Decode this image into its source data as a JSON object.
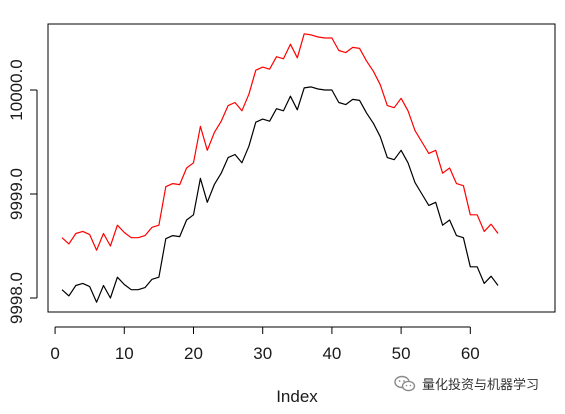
{
  "chart_data": {
    "type": "line",
    "title": "",
    "xlabel": "Index",
    "ylabel": "",
    "xlim": [
      1,
      64
    ],
    "ylim": [
      9997.85,
      10000.55
    ],
    "x_ticks": [
      0,
      10,
      20,
      30,
      40,
      50,
      60
    ],
    "y_ticks": [
      9998.0,
      9999.0,
      10000.0
    ],
    "y_tick_labels": [
      "9998.0",
      "9999.0",
      "10000.0"
    ],
    "grid": false,
    "legend": "none",
    "series": [
      {
        "color": "#ff0000",
        "values": [
          9998.58,
          9998.52,
          9998.62,
          9998.64,
          9998.61,
          9998.46,
          9998.62,
          9998.5,
          9998.7,
          9998.63,
          9998.58,
          9998.58,
          9998.6,
          9998.68,
          9998.7,
          9999.07,
          9999.1,
          9999.09,
          9999.25,
          9999.3,
          9999.65,
          9999.42,
          9999.59,
          9999.7,
          9999.85,
          9999.88,
          9999.8,
          9999.96,
          10000.19,
          10000.22,
          10000.2,
          10000.32,
          10000.3,
          10000.44,
          10000.31,
          10000.54,
          10000.53,
          10000.51,
          10000.5,
          10000.5,
          10000.38,
          10000.36,
          10000.41,
          10000.4,
          10000.28,
          10000.18,
          10000.05,
          9999.85,
          9999.83,
          9999.92,
          9999.8,
          9999.61,
          9999.5,
          9999.39,
          9999.42,
          9999.2,
          9999.25,
          9999.1,
          9999.08,
          9998.8,
          9998.8,
          9998.64,
          9998.71,
          9998.62
        ]
      },
      {
        "color": "#000000",
        "values": [
          9998.08,
          9998.02,
          9998.12,
          9998.14,
          9998.11,
          9997.96,
          9998.12,
          9998.0,
          9998.2,
          9998.13,
          9998.08,
          9998.08,
          9998.1,
          9998.18,
          9998.2,
          9998.57,
          9998.6,
          9998.59,
          9998.75,
          9998.8,
          9999.15,
          9998.92,
          9999.09,
          9999.2,
          9999.35,
          9999.38,
          9999.3,
          9999.46,
          9999.69,
          9999.72,
          9999.7,
          9999.82,
          9999.8,
          9999.94,
          9999.81,
          10000.02,
          10000.03,
          10000.01,
          10000.0,
          10000.0,
          9999.88,
          9999.86,
          9999.91,
          9999.9,
          9999.78,
          9999.68,
          9999.55,
          9999.35,
          9999.33,
          9999.42,
          9999.3,
          9999.11,
          9999.0,
          9998.89,
          9998.92,
          9998.7,
          9998.75,
          9998.6,
          9998.58,
          9998.3,
          9998.3,
          9998.14,
          9998.21,
          9998.12
        ]
      }
    ]
  },
  "watermark": {
    "text": "量化投资与机器学习",
    "icon": "wechat-icon"
  }
}
